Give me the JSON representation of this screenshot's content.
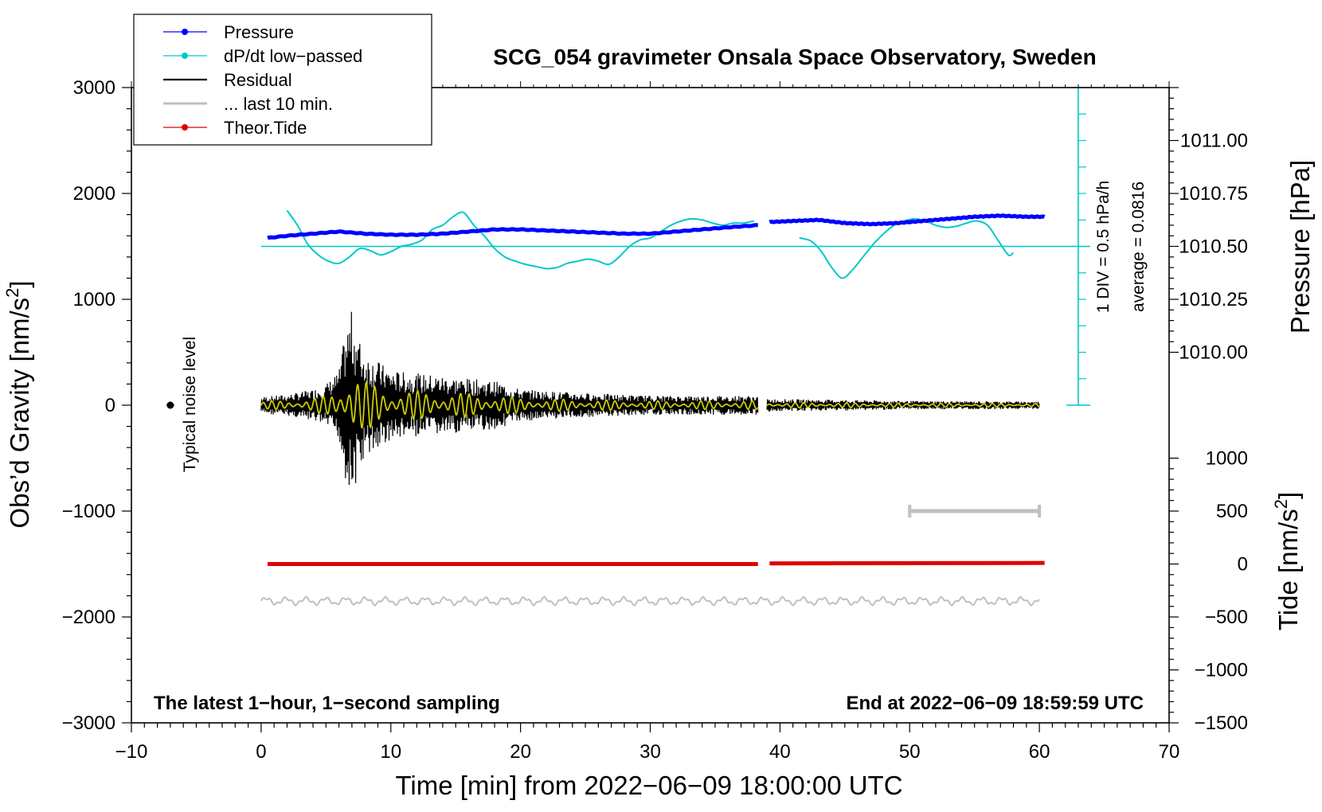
{
  "chart_data": {
    "type": "line",
    "title": "SCG_054 gravimeter Onsala Space Observatory, Sweden",
    "xlabel": "Time [min] from 2022−06−09 18:00:00 UTC",
    "ylabel_left": "Obs’d Gravity [nm/s",
    "ylabel_left_sup": "2",
    "ylabel_left_end": "]",
    "ylabel_right_pressure": "Pressure [hPa]",
    "ylabel_right_tide": "Tide [nm/s",
    "ylabel_right_tide_sup": "2",
    "ylabel_right_tide_end": "]",
    "xlim": [
      -10,
      70
    ],
    "ylim_left": [
      -3000,
      3000
    ],
    "x_ticks": [
      {
        "v": -10,
        "label": "−10"
      },
      {
        "v": 0,
        "label": "0"
      },
      {
        "v": 10,
        "label": "10"
      },
      {
        "v": 20,
        "label": "20"
      },
      {
        "v": 30,
        "label": "30"
      },
      {
        "v": 40,
        "label": "40"
      },
      {
        "v": 50,
        "label": "50"
      },
      {
        "v": 60,
        "label": "60"
      },
      {
        "v": 70,
        "label": "70"
      }
    ],
    "y_ticks_left": [
      {
        "v": 3000,
        "label": "3000"
      },
      {
        "v": 2000,
        "label": "2000"
      },
      {
        "v": 1000,
        "label": "1000"
      },
      {
        "v": 0,
        "label": "0"
      },
      {
        "v": -1000,
        "label": "−1000"
      },
      {
        "v": -2000,
        "label": "−2000"
      },
      {
        "v": -3000,
        "label": "−3000"
      }
    ],
    "pressure_ticks": [
      {
        "v": 1011.0,
        "label": "1011.00"
      },
      {
        "v": 1010.75,
        "label": "1010.75"
      },
      {
        "v": 1010.5,
        "label": "1010.50"
      },
      {
        "v": 1010.25,
        "label": "1010.25"
      },
      {
        "v": 1010.0,
        "label": "1010.00"
      }
    ],
    "pressure_map": {
      "p0": 1010.5,
      "g0": 1500,
      "gain": 2000
    },
    "tide_ticks": [
      {
        "v": 1000,
        "label": "1000"
      },
      {
        "v": 500,
        "label": "500"
      },
      {
        "v": 0,
        "label": "0"
      },
      {
        "v": -500,
        "label": "−500"
      },
      {
        "v": -1000,
        "label": "−1000"
      },
      {
        "v": -1500,
        "label": "−1500"
      }
    ],
    "tide_map": {
      "t0": 0,
      "g0": -1500,
      "gain": 1
    },
    "series": {
      "pressure": {
        "name": "Pressure",
        "color": "#0000ff",
        "segments": [
          {
            "x": [
              0.5,
              2,
              4,
              6,
              8,
              10,
              12,
              14,
              16,
              18,
              20,
              22,
              24,
              26,
              28,
              30,
              32,
              34,
              36,
              38.3
            ],
            "y": [
              1010.54,
              1010.55,
              1010.56,
              1010.57,
              1010.56,
              1010.555,
              1010.555,
              1010.56,
              1010.57,
              1010.58,
              1010.58,
              1010.575,
              1010.57,
              1010.565,
              1010.56,
              1010.56,
              1010.57,
              1010.58,
              1010.59,
              1010.6
            ]
          },
          {
            "x": [
              39.2,
              41,
              43,
              45,
              47,
              49,
              51,
              53,
              55,
              57,
              59,
              60.4
            ],
            "y": [
              1010.615,
              1010.62,
              1010.625,
              1010.61,
              1010.605,
              1010.61,
              1010.62,
              1010.63,
              1010.64,
              1010.645,
              1010.64,
              1010.64
            ]
          }
        ]
      },
      "dpdt": {
        "name": "dP/dt low−passed",
        "color": "#00c8c8",
        "average_label": "average = 0.0816",
        "div_label": "1 DIV = 0.5 hPa/h",
        "segments": [
          {
            "x": [
              2.0,
              2.8,
              3.6,
              4.4,
              5.2,
              6.0,
              6.8,
              7.6,
              8.4,
              9.2,
              10.0,
              10.8,
              11.6,
              12.4,
              13.2,
              14.0,
              14.8,
              15.6,
              16.4,
              17.2,
              18.0,
              18.8,
              19.6,
              20.4,
              21.2,
              22.0,
              22.8,
              23.6,
              24.4,
              25.2,
              26.0,
              26.8,
              27.6,
              28.4,
              29.2,
              30.0,
              30.8,
              31.6,
              32.4,
              33.2,
              34.0,
              34.8,
              35.6,
              36.4,
              37.2,
              38.0
            ],
            "y": [
              1840,
              1700,
              1520,
              1420,
              1360,
              1340,
              1400,
              1480,
              1460,
              1420,
              1450,
              1500,
              1520,
              1560,
              1660,
              1700,
              1780,
              1820,
              1700,
              1600,
              1480,
              1400,
              1360,
              1330,
              1310,
              1290,
              1300,
              1340,
              1360,
              1380,
              1360,
              1330,
              1400,
              1500,
              1560,
              1580,
              1640,
              1700,
              1740,
              1760,
              1750,
              1720,
              1700,
              1720,
              1720,
              1740
            ]
          },
          {
            "x": [
              41.5,
              42.4,
              43.2,
              44.0,
              44.8,
              45.6,
              46.4,
              47.2,
              48.0,
              48.8,
              49.6,
              50.4,
              51.2,
              52.0,
              52.8,
              53.6,
              54.4,
              55.2,
              56.0,
              56.8,
              57.6,
              58.0
            ],
            "y": [
              1580,
              1550,
              1450,
              1300,
              1200,
              1280,
              1400,
              1520,
              1620,
              1700,
              1740,
              1760,
              1740,
              1700,
              1680,
              1690,
              1720,
              1740,
              1700,
              1560,
              1420,
              1440
            ]
          }
        ]
      },
      "residual": {
        "name": "Residual",
        "color": "#000000",
        "segments": [
          {
            "x0": 0,
            "x1": 38.3
          },
          {
            "x0": 39.0,
            "x1": 60.0
          }
        ],
        "envelope": {
          "x": [
            0,
            2,
            4,
            5,
            6,
            6.5,
            7,
            7.5,
            8,
            9,
            10,
            12,
            14,
            16,
            18,
            20,
            24,
            30,
            38.3,
            39.0,
            45,
            50,
            60
          ],
          "amp": [
            80,
            100,
            150,
            200,
            320,
            700,
            900,
            650,
            500,
            420,
            330,
            300,
            280,
            250,
            230,
            150,
            120,
            90,
            90,
            60,
            50,
            40,
            35
          ]
        }
      },
      "last10": {
        "name": "... last 10 min.",
        "color": "#c0c0c0"
      },
      "tide": {
        "name": "Theor.Tide",
        "color": "#e00000",
        "segments": [
          {
            "x": [
              0.5,
              38.3
            ],
            "y": [
              0,
              0
            ]
          },
          {
            "x": [
              39.2,
              60.4
            ],
            "y": [
              6,
              10
            ]
          }
        ]
      }
    },
    "typical_noise_label": "Typical noise level",
    "typical_noise_point": {
      "x": -7,
      "y": 0
    },
    "grey_bar": {
      "x0": 50,
      "x1": 60,
      "y": -1000
    },
    "bottom_left_note": "The latest 1−hour, 1−second sampling",
    "bottom_right_note": "End at 2022−06−09 18:59:59 UTC",
    "legend_placement": "top-left"
  },
  "colors": {
    "pressure": "#0000ff",
    "dpdt": "#00c8c8",
    "residual": "#000000",
    "yellow_lowpass": "#cccc00",
    "last10": "#c0c0c0",
    "tide": "#e00000"
  }
}
